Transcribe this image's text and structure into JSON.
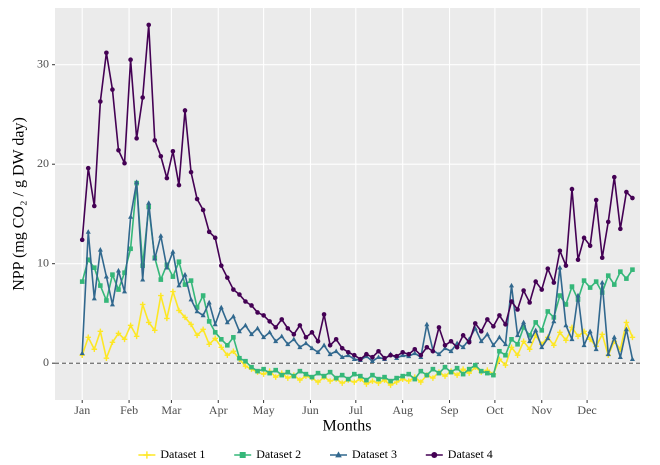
{
  "chart_data": {
    "type": "line",
    "x_label": "Months",
    "y_label": "NPP (mg CO₂ / g DW day)",
    "xlim": [
      -17,
      370
    ],
    "ylim": [
      -3.7,
      35.7
    ],
    "xticks": [
      {
        "value": 1,
        "label": "Jan"
      },
      {
        "value": 32,
        "label": "Feb"
      },
      {
        "value": 60,
        "label": "Mar"
      },
      {
        "value": 91,
        "label": "Apr"
      },
      {
        "value": 121,
        "label": "May"
      },
      {
        "value": 152,
        "label": "Jun"
      },
      {
        "value": 182,
        "label": "Jul"
      },
      {
        "value": 213,
        "label": "Aug"
      },
      {
        "value": 244,
        "label": "Sep"
      },
      {
        "value": 274,
        "label": "Oct"
      },
      {
        "value": 305,
        "label": "Nov"
      },
      {
        "value": 335,
        "label": "Dec"
      }
    ],
    "yticks": [
      0,
      10,
      20,
      30
    ],
    "grid": true,
    "hline": 0,
    "legend_position": "bottom",
    "x": [
      1,
      5,
      9,
      13,
      17,
      21,
      25,
      29,
      33,
      37,
      41,
      45,
      49,
      53,
      57,
      61,
      65,
      69,
      73,
      77,
      81,
      85,
      89,
      93,
      97,
      101,
      105,
      109,
      113,
      117,
      121,
      125,
      129,
      133,
      137,
      141,
      145,
      149,
      153,
      157,
      161,
      165,
      169,
      173,
      177,
      181,
      185,
      189,
      193,
      197,
      201,
      205,
      209,
      213,
      217,
      221,
      225,
      229,
      233,
      237,
      241,
      245,
      249,
      253,
      257,
      261,
      265,
      269,
      273,
      277,
      281,
      285,
      289,
      293,
      297,
      301,
      305,
      309,
      313,
      317,
      321,
      325,
      329,
      333,
      337,
      341,
      345,
      349,
      353,
      357,
      361,
      365
    ],
    "series": [
      {
        "name": "Dataset 1",
        "color": "#fde725",
        "marker": "plus",
        "values": [
          0.8,
          2.6,
          1.4,
          3.2,
          0.5,
          2.1,
          3.0,
          2.4,
          3.8,
          2.7,
          5.9,
          4.1,
          3.3,
          6.8,
          4.5,
          7.2,
          5.3,
          4.6,
          3.9,
          2.8,
          3.4,
          1.9,
          2.5,
          1.6,
          0.8,
          1.2,
          0.4,
          -0.3,
          -0.6,
          -0.9,
          -1.1,
          -0.8,
          -1.4,
          -1.0,
          -1.5,
          -1.2,
          -1.7,
          -1.3,
          -1.5,
          -1.9,
          -1.4,
          -1.8,
          -1.6,
          -2.0,
          -1.7,
          -1.9,
          -1.6,
          -2.1,
          -1.8,
          -2.0,
          -1.7,
          -2.2,
          -1.9,
          -1.6,
          -1.8,
          -1.4,
          -1.9,
          -1.2,
          -1.5,
          -0.9,
          -1.3,
          -0.8,
          -1.2,
          -0.6,
          -1.0,
          -0.4,
          -0.9,
          -0.7,
          -1.1,
          0.4,
          -0.2,
          1.6,
          0.8,
          2.2,
          1.4,
          2.8,
          1.9,
          2.6,
          1.8,
          3.1,
          2.3,
          3.6,
          2.7,
          3.2,
          2.4,
          1.7,
          2.9,
          0.8,
          2.2,
          1.4,
          4.1,
          2.6
        ]
      },
      {
        "name": "Dataset 2",
        "color": "#35b779",
        "marker": "square",
        "values": [
          8.2,
          10.4,
          9.6,
          7.8,
          6.3,
          8.9,
          7.4,
          9.1,
          11.5,
          18.1,
          9.8,
          15.7,
          10.6,
          8.4,
          9.9,
          8.7,
          10.2,
          7.9,
          8.3,
          5.6,
          6.8,
          4.2,
          3.1,
          2.4,
          1.8,
          2.6,
          0.5,
          0.2,
          -0.4,
          -0.8,
          -0.6,
          -1.0,
          -0.7,
          -1.2,
          -0.9,
          -1.3,
          -0.8,
          -1.1,
          -1.4,
          -1.0,
          -1.3,
          -0.9,
          -1.5,
          -1.2,
          -1.6,
          -1.1,
          -1.3,
          -1.7,
          -1.2,
          -1.6,
          -1.4,
          -1.8,
          -1.5,
          -1.3,
          -1.1,
          -1.6,
          -0.8,
          -1.2,
          -0.6,
          -1.0,
          -0.4,
          -0.9,
          -0.5,
          -1.1,
          -0.6,
          -0.2,
          -0.8,
          -1.0,
          -1.2,
          1.2,
          0.8,
          2.4,
          1.9,
          3.6,
          2.8,
          4.1,
          3.3,
          5.2,
          4.6,
          6.8,
          5.9,
          7.7,
          6.4,
          8.3,
          7.6,
          8.2,
          7.1,
          8.8,
          7.9,
          9.2,
          8.5,
          9.4
        ]
      },
      {
        "name": "Dataset 3",
        "color": "#31688e",
        "marker": "triangle",
        "values": [
          1.0,
          13.2,
          6.5,
          11.4,
          8.7,
          5.9,
          9.3,
          7.2,
          14.7,
          18.2,
          8.4,
          16.1,
          10.5,
          12.8,
          9.6,
          11.2,
          7.8,
          8.9,
          6.4,
          5.2,
          4.8,
          6.1,
          3.9,
          5.6,
          4.1,
          4.7,
          3.2,
          3.8,
          2.9,
          3.5,
          2.6,
          3.1,
          2.2,
          2.7,
          1.9,
          2.4,
          1.6,
          2.0,
          1.5,
          1.1,
          1.8,
          0.9,
          1.2,
          0.6,
          0.8,
          0.4,
          0.3,
          0.7,
          0.2,
          0.6,
          0.4,
          0.9,
          0.5,
          0.8,
          0.7,
          1.0,
          0.6,
          3.9,
          1.3,
          0.9,
          1.5,
          1.2,
          2.0,
          1.6,
          2.4,
          3.5,
          2.2,
          2.9,
          1.8,
          2.6,
          1.9,
          7.8,
          2.8,
          4.1,
          2.2,
          3.3,
          1.6,
          2.5,
          4.2,
          9.6,
          3.8,
          2.4,
          6.8,
          1.8,
          3.2,
          1.4,
          8.1,
          0.9,
          2.6,
          0.6,
          3.4,
          0.4
        ]
      },
      {
        "name": "Dataset 4",
        "color": "#440154",
        "marker": "circle",
        "values": [
          12.4,
          19.6,
          15.8,
          26.3,
          31.2,
          27.5,
          21.4,
          20.1,
          30.5,
          22.6,
          26.7,
          34.0,
          22.4,
          20.8,
          18.6,
          21.3,
          17.9,
          25.4,
          19.2,
          16.5,
          15.4,
          13.2,
          12.6,
          9.8,
          8.6,
          7.4,
          6.9,
          6.2,
          5.8,
          5.1,
          4.8,
          4.2,
          3.6,
          4.4,
          3.5,
          2.9,
          3.8,
          2.6,
          3.1,
          2.2,
          4.9,
          1.8,
          2.4,
          1.5,
          1.1,
          0.8,
          0.4,
          0.9,
          0.6,
          1.2,
          0.5,
          0.8,
          0.7,
          1.1,
          0.9,
          1.4,
          0.8,
          1.6,
          1.2,
          3.6,
          1.8,
          2.2,
          1.6,
          2.8,
          2.1,
          4.0,
          3.2,
          4.4,
          3.7,
          4.8,
          3.9,
          6.2,
          5.4,
          7.3,
          6.1,
          8.2,
          7.4,
          9.5,
          8.1,
          11.3,
          9.8,
          17.5,
          10.4,
          12.6,
          11.8,
          16.4,
          10.6,
          14.2,
          18.7,
          13.5,
          17.2,
          16.6
        ]
      }
    ]
  }
}
